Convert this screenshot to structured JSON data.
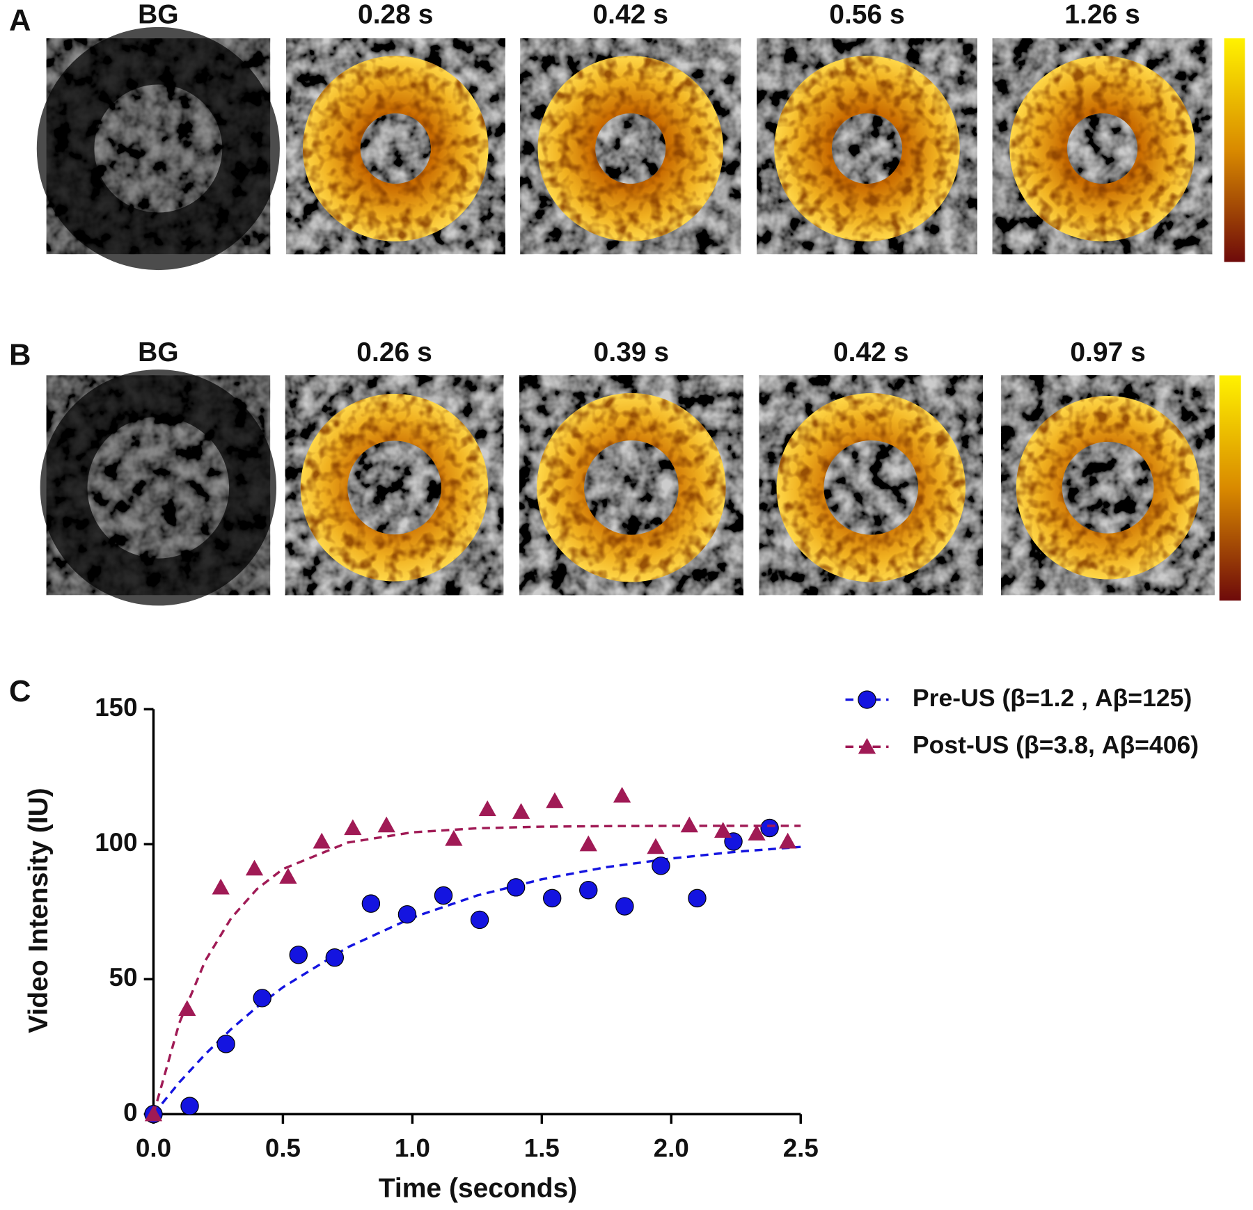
{
  "panels": [
    {
      "label": "A",
      "frames": [
        "BG",
        "0.28 s",
        "0.42 s",
        "0.56 s",
        "1.26 s"
      ]
    },
    {
      "label": "B",
      "frames": [
        "BG",
        "0.26 s",
        "0.39 s",
        "0.42 s",
        "0.97 s"
      ]
    }
  ],
  "chart_data": {
    "type": "scatter",
    "panel_label": "C",
    "xlabel": "Time (seconds)",
    "ylabel": "Video Intensity (IU)",
    "xlim": [
      0,
      2.5
    ],
    "ylim": [
      0,
      150
    ],
    "xticks": [
      {
        "value": 0,
        "label": "0.0"
      },
      {
        "value": 0.5,
        "label": "0.5"
      },
      {
        "value": 1,
        "label": "1.0"
      },
      {
        "value": 1.5,
        "label": "1.5"
      },
      {
        "value": 2,
        "label": "2.0"
      },
      {
        "value": 2.5,
        "label": "2.5"
      }
    ],
    "yticks": [
      0,
      50,
      100,
      150
    ],
    "legend": "upper-right",
    "series": [
      {
        "name": "Pre-US (β=1.2 , Aβ=125)",
        "color": "#1414e0",
        "marker": "circle",
        "x": [
          0,
          0.14,
          0.28,
          0.42,
          0.56,
          0.7,
          0.84,
          0.98,
          1.12,
          1.26,
          1.4,
          1.54,
          1.68,
          1.82,
          1.96,
          2.1,
          2.24,
          2.38
        ],
        "values": [
          0,
          3,
          26,
          43,
          59,
          58,
          78,
          74,
          81,
          72,
          84,
          80,
          83,
          77,
          92,
          80,
          101,
          106
        ],
        "fit_x": [
          0,
          0.1,
          0.2,
          0.3,
          0.4,
          0.5,
          0.75,
          1,
          1.25,
          1.5,
          1.75,
          2,
          2.25,
          2.5
        ],
        "fit_values": [
          0,
          11.8,
          22.2,
          31.5,
          39.7,
          47.0,
          61.8,
          72.8,
          81.0,
          87.0,
          91.5,
          94.7,
          97.2,
          99.0
        ]
      },
      {
        "name": "Post-US (β=3.8, Aβ=406)",
        "color": "#a01a55",
        "marker": "triangle",
        "x": [
          0,
          0.13,
          0.26,
          0.39,
          0.52,
          0.65,
          0.77,
          0.9,
          1.16,
          1.29,
          1.42,
          1.55,
          1.68,
          1.81,
          1.94,
          2.07,
          2.2,
          2.33,
          2.45
        ],
        "values": [
          0,
          39,
          84,
          91,
          88,
          101,
          106,
          107,
          102,
          113,
          112,
          116,
          100,
          118,
          99,
          107,
          105,
          104,
          101
        ],
        "fit_x": [
          0,
          0.1,
          0.2,
          0.3,
          0.4,
          0.5,
          0.75,
          1,
          1.25,
          1.5,
          1.75,
          2,
          2.25,
          2.5
        ],
        "fit_values": [
          0,
          33.8,
          56.8,
          72.6,
          83.4,
          90.8,
          100.6,
          104.4,
          105.9,
          106.5,
          106.7,
          106.8,
          106.8,
          106.8
        ]
      }
    ]
  }
}
